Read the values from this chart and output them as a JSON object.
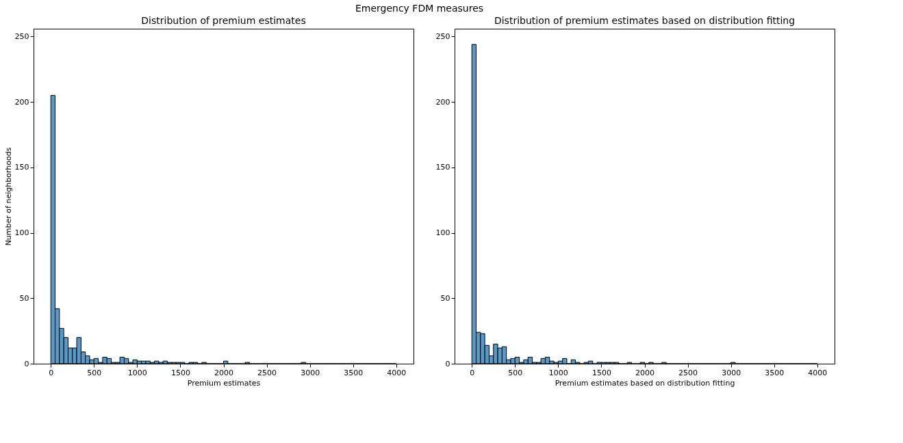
{
  "chart_data": [
    {
      "type": "histogram",
      "title": "Distribution of premium estimates",
      "xlabel": "Premium estimates",
      "ylabel": "Number of neighborhoods",
      "annotations": [
        "Emergency FDM measures"
      ],
      "bins": [
        0,
        50,
        100,
        150,
        200,
        250,
        300,
        350,
        400,
        450,
        500,
        550,
        600,
        650,
        700,
        750,
        800,
        850,
        900,
        950,
        1000,
        1050,
        1100,
        1150,
        1200,
        1250,
        1300,
        1350,
        1400,
        1450,
        1500,
        1550,
        1600,
        1650,
        1700,
        1750,
        1800,
        1850,
        1900,
        1950,
        2000,
        2050,
        2100,
        2150,
        2200,
        2250,
        2300,
        2350,
        2400,
        2450,
        2500,
        2550,
        2600,
        2650,
        2700,
        2750,
        2800,
        2850,
        2900,
        2950,
        3000,
        3050,
        3100,
        3150,
        3200,
        3250,
        3300,
        3350,
        3400,
        3450,
        3500,
        3550,
        3600,
        3650,
        3700,
        3750,
        3800,
        3850,
        3900,
        3950,
        4000
      ],
      "values": [
        205,
        42,
        27,
        20,
        12,
        12,
        20,
        9,
        6,
        3,
        4,
        1,
        5,
        4,
        1,
        1,
        5,
        4,
        1,
        3,
        2,
        2,
        2,
        1,
        2,
        1,
        2,
        1,
        1,
        1,
        1,
        0,
        1,
        1,
        0,
        1,
        0,
        0,
        0,
        0,
        2,
        0,
        0,
        0,
        0,
        1,
        0,
        0,
        0,
        0,
        0,
        0,
        0,
        0,
        0,
        0,
        0,
        0,
        1,
        0,
        0,
        0,
        0,
        0,
        0,
        0,
        0,
        0,
        0,
        0,
        0,
        0,
        0,
        0,
        0,
        0,
        0,
        0,
        0,
        0
      ],
      "color": "#5799c7",
      "xlim": [
        -200,
        4200
      ],
      "ylim": [
        0,
        256
      ],
      "xticks": [
        0,
        500,
        1000,
        1500,
        2000,
        2500,
        3000,
        3500,
        4000
      ],
      "yticks": [
        0,
        50,
        100,
        150,
        200,
        250
      ],
      "grid": false
    },
    {
      "type": "histogram",
      "title": "Distribution of premium estimates based on distribution fitting",
      "xlabel": "Premium estimates based on distribution fitting",
      "bins": [
        0,
        50,
        100,
        150,
        200,
        250,
        300,
        350,
        400,
        450,
        500,
        550,
        600,
        650,
        700,
        750,
        800,
        850,
        900,
        950,
        1000,
        1050,
        1100,
        1150,
        1200,
        1250,
        1300,
        1350,
        1400,
        1450,
        1500,
        1550,
        1600,
        1650,
        1700,
        1750,
        1800,
        1850,
        1900,
        1950,
        2000,
        2050,
        2100,
        2150,
        2200,
        2250,
        2300,
        2350,
        2400,
        2450,
        2500,
        2550,
        2600,
        2650,
        2700,
        2750,
        2800,
        2850,
        2900,
        2950,
        3000,
        3050,
        3100,
        3150,
        3200,
        3250,
        3300,
        3350,
        3400,
        3450,
        3500,
        3550,
        3600,
        3650,
        3700,
        3750,
        3800,
        3850,
        3900,
        3950,
        4000
      ],
      "values": [
        244,
        24,
        23,
        14,
        6,
        15,
        12,
        13,
        3,
        4,
        5,
        1,
        3,
        5,
        1,
        1,
        4,
        5,
        2,
        1,
        2,
        4,
        0,
        3,
        1,
        0,
        1,
        2,
        0,
        1,
        1,
        1,
        1,
        1,
        0,
        0,
        1,
        0,
        0,
        1,
        0,
        1,
        0,
        0,
        1,
        0,
        0,
        0,
        0,
        0,
        0,
        0,
        0,
        0,
        0,
        0,
        0,
        0,
        0,
        0,
        1,
        0,
        0,
        0,
        0,
        0,
        0,
        0,
        0,
        0,
        0,
        0,
        0,
        0,
        0,
        0,
        0,
        0,
        0,
        0
      ],
      "color": "#5799c7",
      "xlim": [
        -200,
        4200
      ],
      "ylim": [
        0,
        256
      ],
      "xticks": [
        0,
        500,
        1000,
        1500,
        2000,
        2500,
        3000,
        3500,
        4000
      ],
      "yticks": [
        0,
        50,
        100,
        150,
        200,
        250
      ],
      "grid": false
    }
  ]
}
